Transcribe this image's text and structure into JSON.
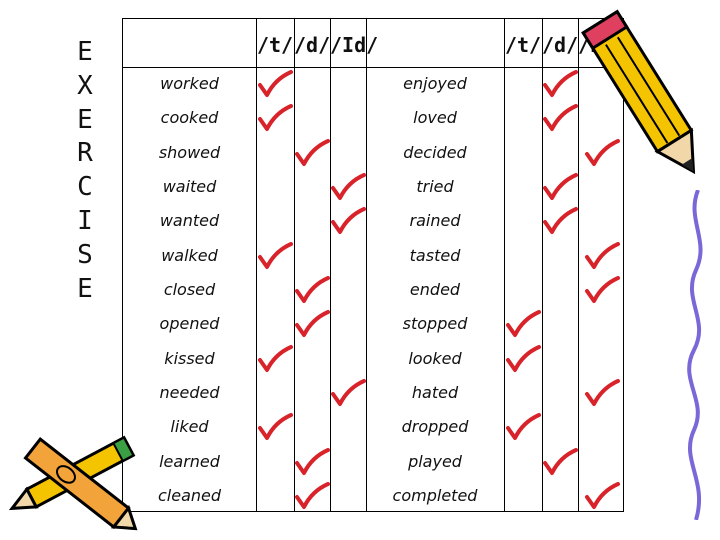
{
  "side_title": [
    "E",
    "X",
    "E",
    "R",
    "C",
    "I",
    "S",
    "E"
  ],
  "headers_left": [
    "/t/",
    "/d/",
    "/Id/"
  ],
  "headers_right": [
    "/t/",
    "/d/",
    "/Id/"
  ],
  "rows": [
    {
      "left_word": "worked",
      "left_mark": "t",
      "right_word": "enjoyed",
      "right_mark": "d"
    },
    {
      "left_word": "cooked",
      "left_mark": "t",
      "right_word": "loved",
      "right_mark": "d"
    },
    {
      "left_word": "showed",
      "left_mark": "d",
      "right_word": "decided",
      "right_mark": "Id"
    },
    {
      "left_word": "waited",
      "left_mark": "Id",
      "right_word": "tried",
      "right_mark": "d"
    },
    {
      "left_word": "wanted",
      "left_mark": "Id",
      "right_word": "rained",
      "right_mark": "d"
    },
    {
      "left_word": "walked",
      "left_mark": "t",
      "right_word": "tasted",
      "right_mark": "Id"
    },
    {
      "left_word": "closed",
      "left_mark": "d",
      "right_word": "ended",
      "right_mark": "Id"
    },
    {
      "left_word": "opened",
      "left_mark": "d",
      "right_word": "stopped",
      "right_mark": "t"
    },
    {
      "left_word": "kissed",
      "left_mark": "t",
      "right_word": "looked",
      "right_mark": "t"
    },
    {
      "left_word": "needed",
      "left_mark": "Id",
      "right_word": "hated",
      "right_mark": "Id"
    },
    {
      "left_word": "liked",
      "left_mark": "t",
      "right_word": "dropped",
      "right_mark": "t"
    },
    {
      "left_word": "learned",
      "left_mark": "d",
      "right_word": "played",
      "right_mark": "d"
    },
    {
      "left_word": "cleaned",
      "left_mark": "d",
      "right_word": "completed",
      "right_mark": "Id"
    }
  ],
  "colors": {
    "check": "#d8232a",
    "pencil_body": "#f4c400",
    "pencil_outline": "#000000"
  }
}
